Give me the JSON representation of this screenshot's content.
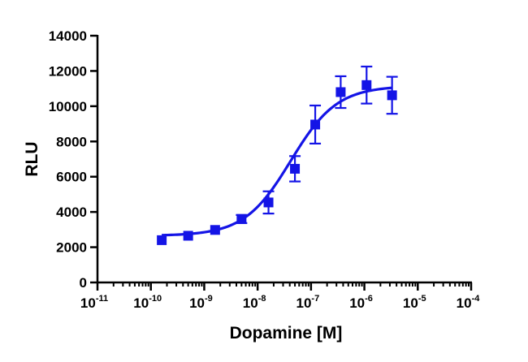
{
  "chart_data": {
    "type": "scatter",
    "xlabel": "Dopamine [M]",
    "ylabel": "RLU",
    "x_scale": "log",
    "xlim": [
      1e-11,
      0.0001
    ],
    "ylim": [
      0,
      14000
    ],
    "x_tick_labels": [
      "10-11",
      "10-10",
      "10-9",
      "10-8",
      "10-7",
      "10-6",
      "10-5",
      "10-4"
    ],
    "x_tick_exponents": [
      -11,
      -10,
      -9,
      -8,
      -7,
      -6,
      -5,
      -4
    ],
    "y_ticks": [
      0,
      2000,
      4000,
      6000,
      8000,
      10000,
      12000,
      14000
    ],
    "grid": false,
    "legend": "none",
    "series": [
      {
        "marker": "square",
        "color": "#1414E6",
        "points": [
          {
            "x": 1.6e-10,
            "y": 2400,
            "err": 0
          },
          {
            "x": 5e-10,
            "y": 2650,
            "err": 0
          },
          {
            "x": 1.6e-09,
            "y": 2980,
            "err": 0
          },
          {
            "x": 5e-09,
            "y": 3600,
            "err": 230
          },
          {
            "x": 1.6e-08,
            "y": 4540,
            "err": 630
          },
          {
            "x": 5e-08,
            "y": 6450,
            "err": 720
          },
          {
            "x": 1.2e-07,
            "y": 8960,
            "err": 1080
          },
          {
            "x": 3.6e-07,
            "y": 10800,
            "err": 900
          },
          {
            "x": 1.1e-06,
            "y": 11200,
            "err": 1050
          },
          {
            "x": 3.3e-06,
            "y": 10620,
            "err": 1050
          }
        ]
      }
    ],
    "fit": {
      "model": "sigmoidal dose-response",
      "bottom": 2650,
      "top": 11150,
      "log_ec50": -7.38,
      "hill": 1.0,
      "x_from": 1.6e-10,
      "x_to": 3.3e-06
    }
  }
}
